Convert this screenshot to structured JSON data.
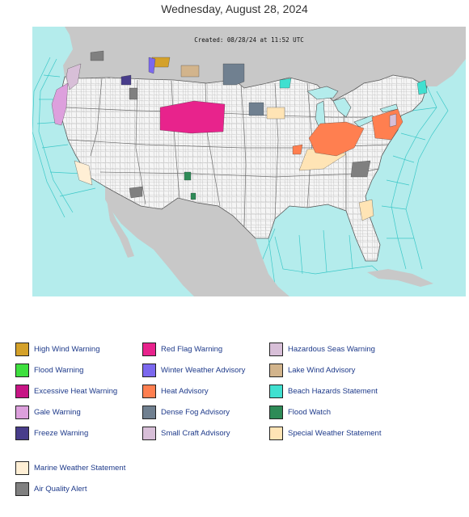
{
  "header": {
    "date": "Wednesday, August 28, 2024"
  },
  "map": {
    "created_stamp": "Created: 08/28/24 at 11:52 UTC",
    "colors": {
      "water": "#b4ecec",
      "land": "#f5f5f5",
      "foreign_land": "#c8c8c8",
      "county_lines": "#9e9e9e",
      "marine_zone_lines": "#3cc8c8"
    }
  },
  "legend": [
    {
      "label": "High Wind Warning",
      "color": "#d4a12a"
    },
    {
      "label": "Red Flag Warning",
      "color": "#e8238c"
    },
    {
      "label": "Hazardous Seas Warning",
      "color": "#d8bfd8"
    },
    {
      "label": "Flood Warning",
      "color": "#3ee03e"
    },
    {
      "label": "Winter Weather Advisory",
      "color": "#7b68ee"
    },
    {
      "label": "Lake Wind Advisory",
      "color": "#d2b48c"
    },
    {
      "label": "Excessive Heat Warning",
      "color": "#c71585"
    },
    {
      "label": "Heat Advisory",
      "color": "#ff7f50"
    },
    {
      "label": "Beach Hazards Statement",
      "color": "#40e0d0"
    },
    {
      "label": "Gale Warning",
      "color": "#dda0dd"
    },
    {
      "label": "Dense Fog Advisory",
      "color": "#708090"
    },
    {
      "label": "Flood Watch",
      "color": "#2e8b57"
    },
    {
      "label": "Freeze Warning",
      "color": "#483d8b"
    },
    {
      "label": "Small Craft Advisory",
      "color": "#d8bfd8"
    },
    {
      "label": "Special Weather Statement",
      "color": "#ffe4b5"
    },
    {
      "label": "Marine Weather Statement",
      "color": "#ffefd5"
    },
    {
      "label": "Air Quality Alert",
      "color": "#808080"
    }
  ]
}
